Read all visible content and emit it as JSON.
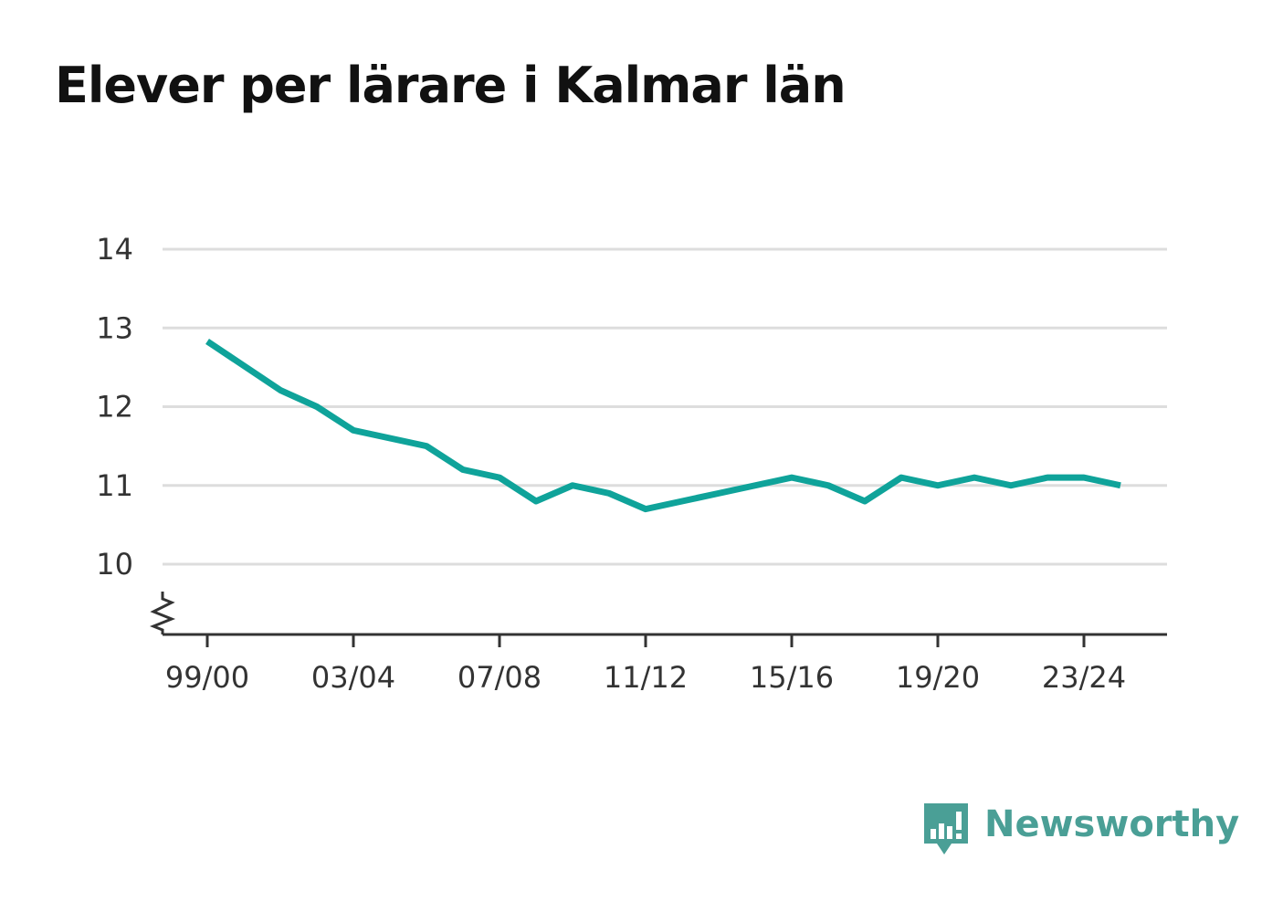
{
  "title": "Elever per lärare i Kalmar län",
  "brand": {
    "name": "Newsworthy",
    "logo_icon": "bar-chart-speech-bubble-icon",
    "color": "#4a9f96"
  },
  "chart_data": {
    "type": "line",
    "title": "Elever per lärare i Kalmar län",
    "xlabel": "",
    "ylabel": "",
    "x": [
      "99/00",
      "00/01",
      "01/02",
      "02/03",
      "03/04",
      "04/05",
      "05/06",
      "06/07",
      "07/08",
      "08/09",
      "09/10",
      "10/11",
      "11/12",
      "12/13",
      "13/14",
      "14/15",
      "15/16",
      "16/17",
      "17/18",
      "18/19",
      "19/20",
      "20/21",
      "21/22",
      "22/23",
      "23/24",
      "24/25"
    ],
    "xtick_labels": [
      "99/00",
      "03/04",
      "07/08",
      "11/12",
      "15/16",
      "19/20",
      "23/24"
    ],
    "yticks": [
      10,
      11,
      12,
      13,
      14
    ],
    "ylim": [
      9.1,
      14
    ],
    "axis_break": true,
    "grid": true,
    "series": [
      {
        "color": "#0fa39a",
        "values": [
          12.83,
          12.52,
          12.21,
          12.0,
          11.7,
          11.6,
          11.5,
          11.2,
          11.1,
          10.8,
          11.0,
          10.9,
          10.7,
          10.8,
          10.9,
          11.0,
          11.1,
          11.0,
          10.8,
          11.1,
          11.0,
          11.1,
          11.0,
          11.1,
          11.1,
          11.0
        ]
      }
    ]
  }
}
